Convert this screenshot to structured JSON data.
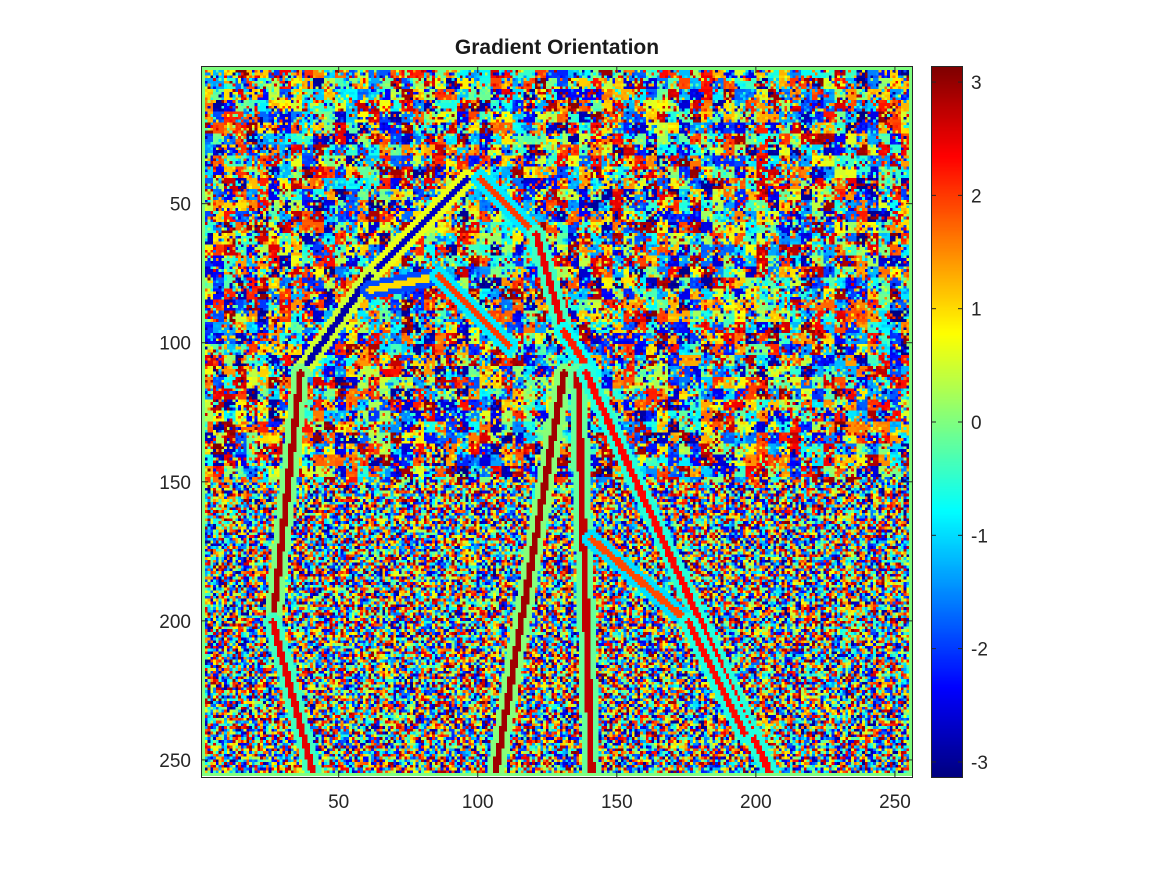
{
  "chart_data": {
    "type": "heatmap",
    "title": "Gradient Orientation",
    "xlabel": "",
    "ylabel": "",
    "image_size": [
      256,
      256
    ],
    "xlim": [
      0.5,
      256.5
    ],
    "ylim": [
      0.5,
      256.5
    ],
    "y_direction": "reverse",
    "x_ticks": [
      50,
      100,
      150,
      200,
      250
    ],
    "y_ticks": [
      50,
      100,
      150,
      200,
      250
    ],
    "x_tick_labels": [
      "50",
      "100",
      "150",
      "200",
      "250"
    ],
    "y_tick_labels": [
      "50",
      "100",
      "150",
      "200",
      "250"
    ],
    "colormap": "jet",
    "clim": [
      -3.1416,
      3.1416
    ],
    "colorbar": {
      "location": "right",
      "ticks": [
        3,
        2,
        1,
        0,
        -1,
        -2,
        -3
      ],
      "tick_labels": [
        "3",
        "2",
        "1",
        "0",
        "-1",
        "-2",
        "-3"
      ]
    },
    "grid": false
  }
}
